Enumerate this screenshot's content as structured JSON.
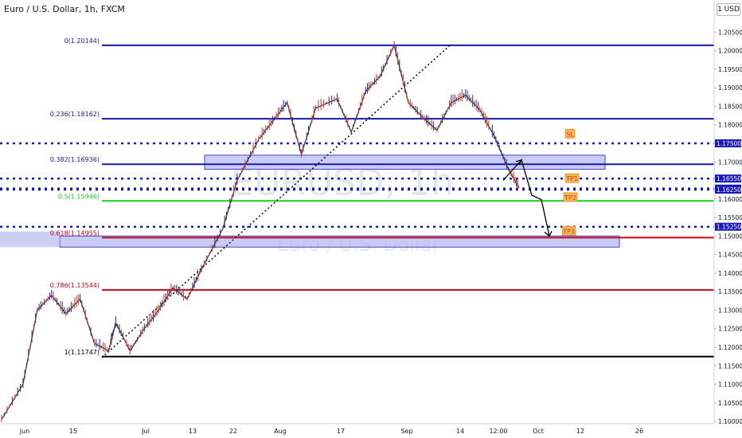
{
  "header": {
    "title": "Euro / U.S. Dollar, 1h, FXCM"
  },
  "currency_badge": "1 USD",
  "watermark": {
    "symbol": "EURUSD, 1h",
    "name": "Euro / U.S. Dollar"
  },
  "colors": {
    "fib_blue": "#1a1aa6",
    "fib_green": "#19d11c",
    "fib_red": "#d0021b",
    "fib_black": "#000000",
    "dotted_blue": "#1a1ab8",
    "zone_fill": "#b7b9f0",
    "zone_border": "#3f46c8",
    "tag_fill": "#ffb84d",
    "tag_text": "#c0392b",
    "label_fill": "#1a1ab8"
  },
  "chart_data": {
    "type": "candlestick",
    "symbol": "EURUSD",
    "timeframe": "1h",
    "source": "FXCM",
    "ylim": [
      1.0998,
      1.2098
    ],
    "y_ticks": [
      "1.20500",
      "1.20000",
      "1.19500",
      "1.19000",
      "1.18500",
      "1.18000",
      "1.17000",
      "1.16000",
      "1.15500",
      "1.15000",
      "1.14500",
      "1.14000",
      "1.13500",
      "1.13000",
      "1.12500",
      "1.12000",
      "1.11500",
      "1.11000",
      "1.10500",
      "1.10000"
    ],
    "x_ticks": [
      "Jun",
      "15",
      "Jul",
      "13",
      "22",
      "Aug",
      "17",
      "Sep",
      "14",
      "12:00",
      "Oct",
      "12",
      "26"
    ],
    "fib_levels": [
      {
        "label": "0(1.20144)",
        "value": 1.20144,
        "color": "fib_blue"
      },
      {
        "label": "0.236(1.18162)",
        "value": 1.18162,
        "color": "fib_blue"
      },
      {
        "label": "0.382(1.16936)",
        "value": 1.16936,
        "color": "fib_blue"
      },
      {
        "label": "0.5(1.15946)",
        "value": 1.15946,
        "color": "fib_green"
      },
      {
        "label": "0.618(1.14955)",
        "value": 1.14955,
        "color": "fib_red"
      },
      {
        "label": "0.786(1.13544)",
        "value": 1.13544,
        "color": "fib_red"
      },
      {
        "label": "1(1.11747)",
        "value": 1.11747,
        "color": "fib_black"
      }
    ],
    "horizontal_levels": [
      "1.17500",
      "1.16550",
      "1.16279",
      "1.16250",
      "1.15250"
    ],
    "zones": [
      {
        "name": "upper-zone",
        "from": 1.168,
        "to": 1.1718
      },
      {
        "name": "lower-zone",
        "from": 1.147,
        "to": 1.15
      }
    ],
    "trade_tags": [
      {
        "label": "SL",
        "value": 1.1775
      },
      {
        "label": "TP1",
        "value": 1.1655
      },
      {
        "label": "TP2",
        "value": 1.1604
      },
      {
        "label": "TP3",
        "value": 1.1513
      }
    ],
    "forecast_path": [
      1.165,
      1.1705,
      1.161,
      1.1598,
      1.15
    ],
    "price_segments": [
      [
        [
          0,
          1.1005
        ],
        [
          0.03,
          1.11
        ],
        [
          0.05,
          1.13
        ],
        [
          0.07,
          1.134
        ],
        [
          0.09,
          1.129
        ],
        [
          0.11,
          1.133
        ],
        [
          0.13,
          1.121
        ],
        [
          0.15,
          1.119
        ],
        [
          0.16,
          1.1265
        ],
        [
          0.18,
          1.119
        ],
        [
          0.2,
          1.125
        ],
        [
          0.22,
          1.13
        ],
        [
          0.24,
          1.136
        ],
        [
          0.26,
          1.133
        ],
        [
          0.28,
          1.141
        ],
        [
          0.31,
          1.152
        ],
        [
          0.33,
          1.165
        ],
        [
          0.36,
          1.176
        ],
        [
          0.38,
          1.181
        ],
        [
          0.4,
          1.186
        ],
        [
          0.42,
          1.172
        ],
        [
          0.44,
          1.1845
        ],
        [
          0.47,
          1.187
        ],
        [
          0.49,
          1.178
        ],
        [
          0.51,
          1.189
        ],
        [
          0.53,
          1.193
        ],
        [
          0.55,
          1.2014
        ],
        [
          0.57,
          1.186
        ],
        [
          0.59,
          1.182
        ],
        [
          0.61,
          1.1785
        ],
        [
          0.63,
          1.186
        ],
        [
          0.65,
          1.188
        ],
        [
          0.67,
          1.184
        ],
        [
          0.69,
          1.177
        ],
        [
          0.71,
          1.168
        ],
        [
          0.725,
          1.163
        ]
      ]
    ]
  }
}
